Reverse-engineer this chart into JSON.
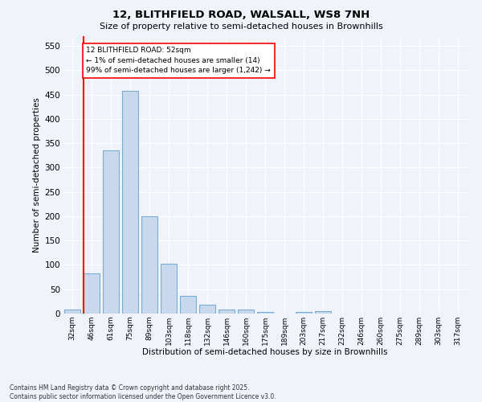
{
  "title1": "12, BLITHFIELD ROAD, WALSALL, WS8 7NH",
  "title2": "Size of property relative to semi-detached houses in Brownhills",
  "xlabel": "Distribution of semi-detached houses by size in Brownhills",
  "ylabel": "Number of semi-detached properties",
  "bin_labels": [
    "32sqm",
    "46sqm",
    "61sqm",
    "75sqm",
    "89sqm",
    "103sqm",
    "118sqm",
    "132sqm",
    "146sqm",
    "160sqm",
    "175sqm",
    "189sqm",
    "203sqm",
    "217sqm",
    "232sqm",
    "246sqm",
    "260sqm",
    "275sqm",
    "289sqm",
    "303sqm",
    "317sqm"
  ],
  "bar_values": [
    8,
    83,
    335,
    458,
    200,
    103,
    37,
    19,
    8,
    8,
    4,
    0,
    4,
    5,
    0,
    0,
    0,
    0,
    0,
    0,
    0
  ],
  "bar_color": "#c9d9ed",
  "bar_edge_color": "#7aadd4",
  "vline_color": "red",
  "vline_x_index": 1,
  "ylim": [
    0,
    570
  ],
  "yticks": [
    0,
    50,
    100,
    150,
    200,
    250,
    300,
    350,
    400,
    450,
    500,
    550
  ],
  "annotation_text": "12 BLITHFIELD ROAD: 52sqm\n← 1% of semi-detached houses are smaller (14)\n99% of semi-detached houses are larger (1,242) →",
  "footer1": "Contains HM Land Registry data © Crown copyright and database right 2025.",
  "footer2": "Contains public sector information licensed under the Open Government Licence v3.0.",
  "bg_color": "#f0f4fa",
  "plot_bg_color": "#f0f4fa"
}
